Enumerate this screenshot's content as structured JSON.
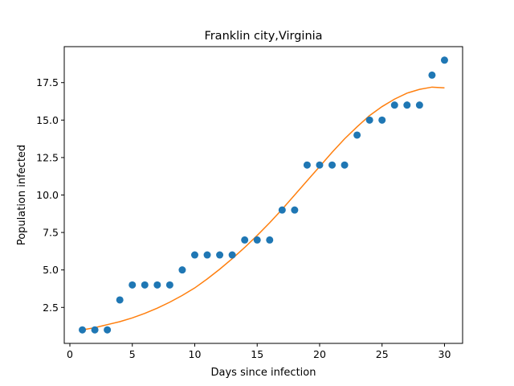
{
  "chart_data": {
    "type": "scatter",
    "title": "Franklin city,Virginia",
    "xlabel": "Days since infection",
    "ylabel": "Population infected",
    "xlim": [
      -0.45,
      31.45
    ],
    "ylim": [
      0.1,
      19.9
    ],
    "xticks": [
      0,
      5,
      10,
      15,
      20,
      25,
      30
    ],
    "xtick_labels": [
      "0",
      "5",
      "10",
      "15",
      "20",
      "25",
      "30"
    ],
    "yticks": [
      2.5,
      5.0,
      7.5,
      10.0,
      12.5,
      15.0,
      17.5
    ],
    "ytick_labels": [
      "2.5",
      "5.0",
      "7.5",
      "10.0",
      "12.5",
      "15.0",
      "17.5"
    ],
    "grid": false,
    "series": [
      {
        "type": "scatter",
        "color": "#1f77b4",
        "x": [
          1,
          2,
          3,
          4,
          5,
          6,
          7,
          8,
          9,
          10,
          11,
          12,
          13,
          14,
          15,
          16,
          17,
          18,
          19,
          20,
          21,
          22,
          23,
          24,
          25,
          26,
          27,
          28,
          29,
          30
        ],
        "y": [
          1,
          1,
          1,
          3,
          4,
          4,
          4,
          4,
          5,
          6,
          6,
          6,
          6,
          7,
          7,
          7,
          9,
          9,
          12,
          12,
          12,
          12,
          14,
          15,
          15,
          16,
          16,
          16,
          18,
          19
        ]
      },
      {
        "type": "line",
        "color": "#ff7f0e",
        "x": [
          1,
          2,
          3,
          4,
          5,
          6,
          7,
          8,
          9,
          10,
          11,
          12,
          13,
          14,
          15,
          16,
          17,
          18,
          19,
          20,
          21,
          22,
          23,
          24,
          25,
          26,
          27,
          28,
          29,
          30
        ],
        "y": [
          1.0,
          1.15,
          1.35,
          1.55,
          1.8,
          2.1,
          2.45,
          2.85,
          3.3,
          3.8,
          4.4,
          5.05,
          5.75,
          6.5,
          7.3,
          8.15,
          9.05,
          10.0,
          10.95,
          11.9,
          12.85,
          13.75,
          14.55,
          15.3,
          15.9,
          16.4,
          16.8,
          17.05,
          17.2,
          17.15
        ]
      }
    ]
  }
}
